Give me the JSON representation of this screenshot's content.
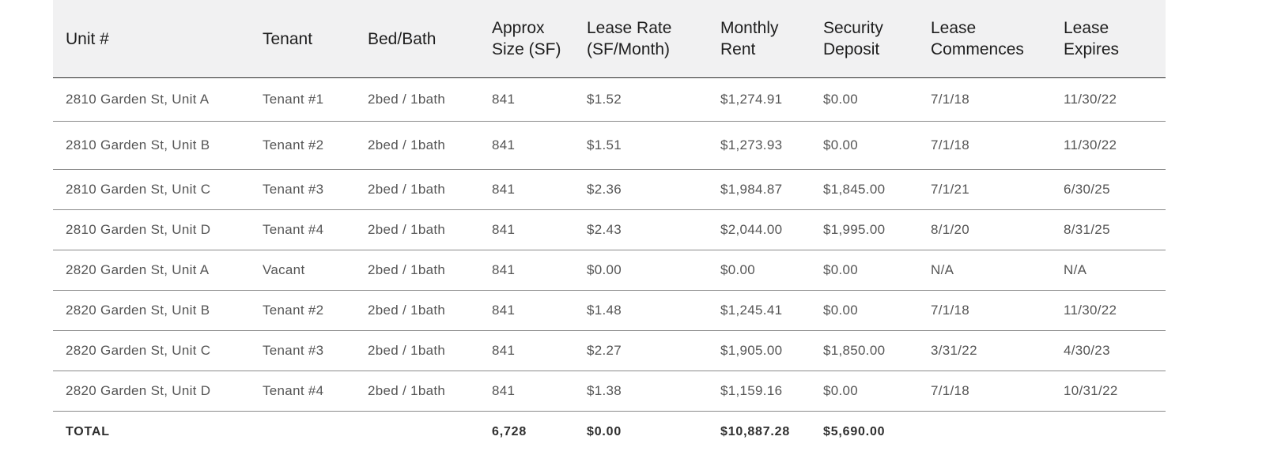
{
  "table": {
    "headers": [
      "Unit #",
      "Tenant",
      "Bed/Bath",
      "Approx\nSize (SF)",
      "Lease Rate\n(SF/Month)",
      "Monthly\nRent",
      "Security\nDeposit",
      "Lease\nCommences",
      "Lease\nExpires"
    ],
    "rows": [
      [
        "2810 Garden St, Unit A",
        "Tenant #1",
        "2bed / 1bath",
        "841",
        "$1.52",
        "$1,274.91",
        "$0.00",
        "7/1/18",
        "11/30/22"
      ],
      [
        "2810 Garden St, Unit B",
        "Tenant #2",
        "2bed / 1bath",
        "841",
        "$1.51",
        "$1,273.93",
        "$0.00",
        "7/1/18",
        "11/30/22"
      ],
      [
        "2810 Garden St, Unit C",
        "Tenant #3",
        "2bed / 1bath",
        "841",
        "$2.36",
        "$1,984.87",
        "$1,845.00",
        "7/1/21",
        "6/30/25"
      ],
      [
        "2810 Garden St, Unit D",
        "Tenant #4",
        "2bed / 1bath",
        "841",
        "$2.43",
        "$2,044.00",
        "$1,995.00",
        "8/1/20",
        "8/31/25"
      ],
      [
        "2820 Garden St, Unit A",
        "Vacant",
        "2bed / 1bath",
        "841",
        "$0.00",
        "$0.00",
        "$0.00",
        "N/A",
        "N/A"
      ],
      [
        "2820 Garden St, Unit B",
        "Tenant #2",
        "2bed / 1bath",
        "841",
        "$1.48",
        "$1,245.41",
        "$0.00",
        "7/1/18",
        "11/30/22"
      ],
      [
        "2820 Garden St, Unit C",
        "Tenant #3",
        "2bed / 1bath",
        "841",
        "$2.27",
        "$1,905.00",
        "$1,850.00",
        "3/31/22",
        "4/30/23"
      ],
      [
        "2820 Garden St, Unit D",
        "Tenant #4",
        "2bed / 1bath",
        "841",
        "$1.38",
        "$1,159.16",
        "$0.00",
        "7/1/18",
        "10/31/22"
      ]
    ],
    "total": [
      "TOTAL",
      "",
      "",
      "6,728",
      "$0.00",
      "$10,887.28",
      "$5,690.00",
      "",
      ""
    ]
  }
}
